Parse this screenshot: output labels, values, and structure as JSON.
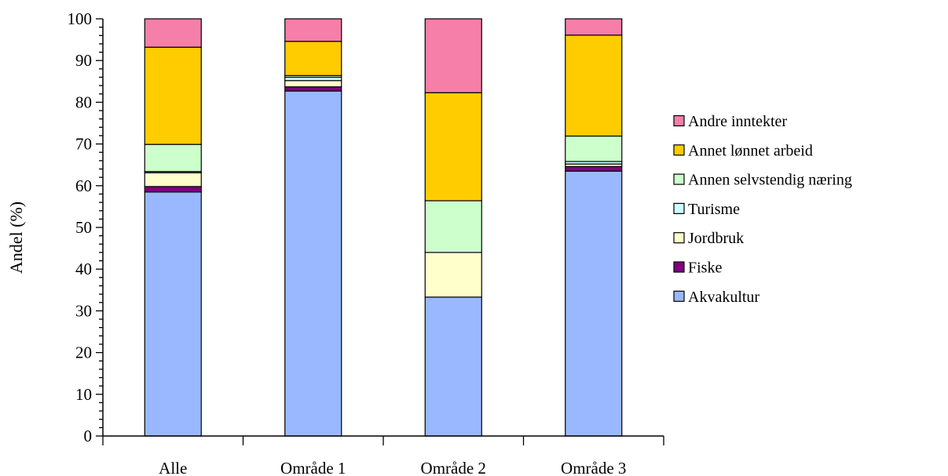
{
  "chart_data": {
    "type": "bar",
    "stacked": true,
    "ylabel": "Andel (%)",
    "xlabel": "",
    "ylim": [
      0,
      100
    ],
    "yticks": [
      0,
      10,
      20,
      30,
      40,
      50,
      60,
      70,
      80,
      90,
      100
    ],
    "grid": false,
    "legend_position": "right",
    "categories": [
      "Alle",
      "Område 1",
      "Område 2",
      "Område 3"
    ],
    "series": [
      {
        "name": "Akvakultur",
        "color": "#99b8ff",
        "values": [
          58.5,
          82.7,
          33.3,
          63.5
        ]
      },
      {
        "name": "Fiske",
        "color": "#800080",
        "values": [
          1.3,
          1.0,
          0.0,
          1.1
        ]
      },
      {
        "name": "Jordbruk",
        "color": "#ffffcc",
        "values": [
          3.3,
          1.5,
          10.7,
          0.6
        ]
      },
      {
        "name": "Turisme",
        "color": "#ccffff",
        "values": [
          0.3,
          0.8,
          0.0,
          0.6
        ]
      },
      {
        "name": "Annen selvstendig næring",
        "color": "#ccffcc",
        "values": [
          6.5,
          0.4,
          12.4,
          6.1
        ]
      },
      {
        "name": "Annet lønnet arbeid",
        "color": "#ffcc00",
        "values": [
          23.3,
          8.2,
          25.9,
          24.2
        ]
      },
      {
        "name": "Andre inntekter",
        "color": "#f57fa8",
        "values": [
          6.8,
          5.4,
          17.7,
          3.9
        ]
      }
    ]
  }
}
